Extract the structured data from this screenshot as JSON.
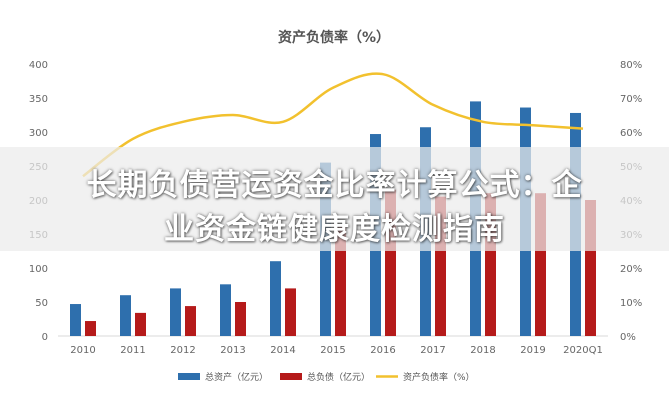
{
  "chart_data": {
    "type": "bar",
    "title": "资产负债率（%）",
    "categories": [
      "2010",
      "2011",
      "2012",
      "2013",
      "2014",
      "2015",
      "2016",
      "2017",
      "2018",
      "2019",
      "2020Q1"
    ],
    "series": [
      {
        "name": "总资产（亿元）",
        "kind": "bar",
        "axis": "left",
        "color": "#2e6fad",
        "values": [
          47,
          60,
          70,
          76,
          110,
          255,
          297,
          307,
          345,
          336,
          328
        ]
      },
      {
        "name": "总负债（亿元）",
        "kind": "bar",
        "axis": "left",
        "color": "#b51a1a",
        "values": [
          22,
          34,
          44,
          50,
          70,
          160,
          215,
          205,
          210,
          210,
          200
        ]
      },
      {
        "name": "资产负债率（%）",
        "kind": "line",
        "axis": "right",
        "color": "#f2c12e",
        "values": [
          47,
          58,
          63,
          65,
          63,
          73,
          77,
          68,
          63,
          62,
          61
        ]
      }
    ],
    "y_left": {
      "min": 0,
      "max": 400,
      "ticks": [
        "0",
        "50",
        "100",
        "150",
        "200",
        "250",
        "300",
        "350",
        "400"
      ]
    },
    "y_right": {
      "min": 0,
      "max": 80,
      "ticks": [
        "0%",
        "10%",
        "20%",
        "30%",
        "40%",
        "50%",
        "60%",
        "70%",
        "80%"
      ]
    },
    "grid": false,
    "legend_position": "bottom"
  },
  "overlay": {
    "line1": "长期负债营运资金比率计算公式：企",
    "line2": "业资金链健康度检测指南"
  }
}
